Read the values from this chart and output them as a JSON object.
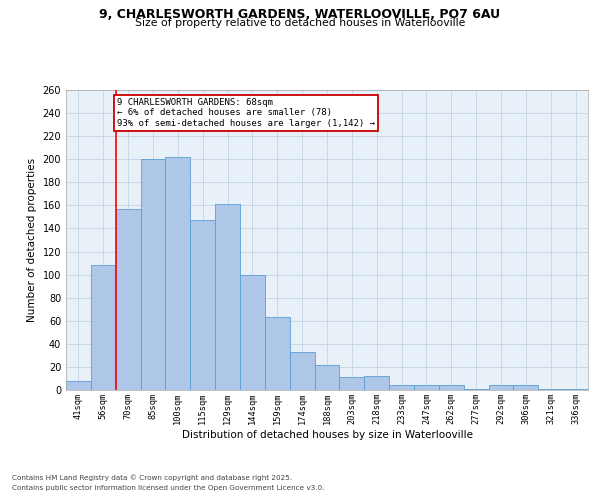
{
  "title1": "9, CHARLESWORTH GARDENS, WATERLOOVILLE, PO7 6AU",
  "title2": "Size of property relative to detached houses in Waterlooville",
  "xlabel": "Distribution of detached houses by size in Waterlooville",
  "ylabel": "Number of detached properties",
  "footer1": "Contains HM Land Registry data © Crown copyright and database right 2025.",
  "footer2": "Contains public sector information licensed under the Open Government Licence v3.0.",
  "annotation_line1": "9 CHARLESWORTH GARDENS: 68sqm",
  "annotation_line2": "← 6% of detached houses are smaller (78)",
  "annotation_line3": "93% of semi-detached houses are larger (1,142) →",
  "categories": [
    "41sqm",
    "56sqm",
    "70sqm",
    "85sqm",
    "100sqm",
    "115sqm",
    "129sqm",
    "144sqm",
    "159sqm",
    "174sqm",
    "188sqm",
    "203sqm",
    "218sqm",
    "233sqm",
    "247sqm",
    "262sqm",
    "277sqm",
    "292sqm",
    "306sqm",
    "321sqm",
    "336sqm"
  ],
  "values": [
    8,
    108,
    157,
    200,
    202,
    147,
    161,
    100,
    63,
    33,
    22,
    11,
    12,
    4,
    4,
    4,
    1,
    4,
    4,
    1,
    1
  ],
  "bar_color": "#aec6e8",
  "bar_edge_color": "#5a9fd4",
  "redline_index": 1.5,
  "annotation_box_color": "#cc0000",
  "grid_color": "#c8d8e8",
  "bg_color": "#e8f0f8",
  "ylim": [
    0,
    260
  ],
  "yticks": [
    0,
    20,
    40,
    60,
    80,
    100,
    120,
    140,
    160,
    180,
    200,
    220,
    240,
    260
  ]
}
